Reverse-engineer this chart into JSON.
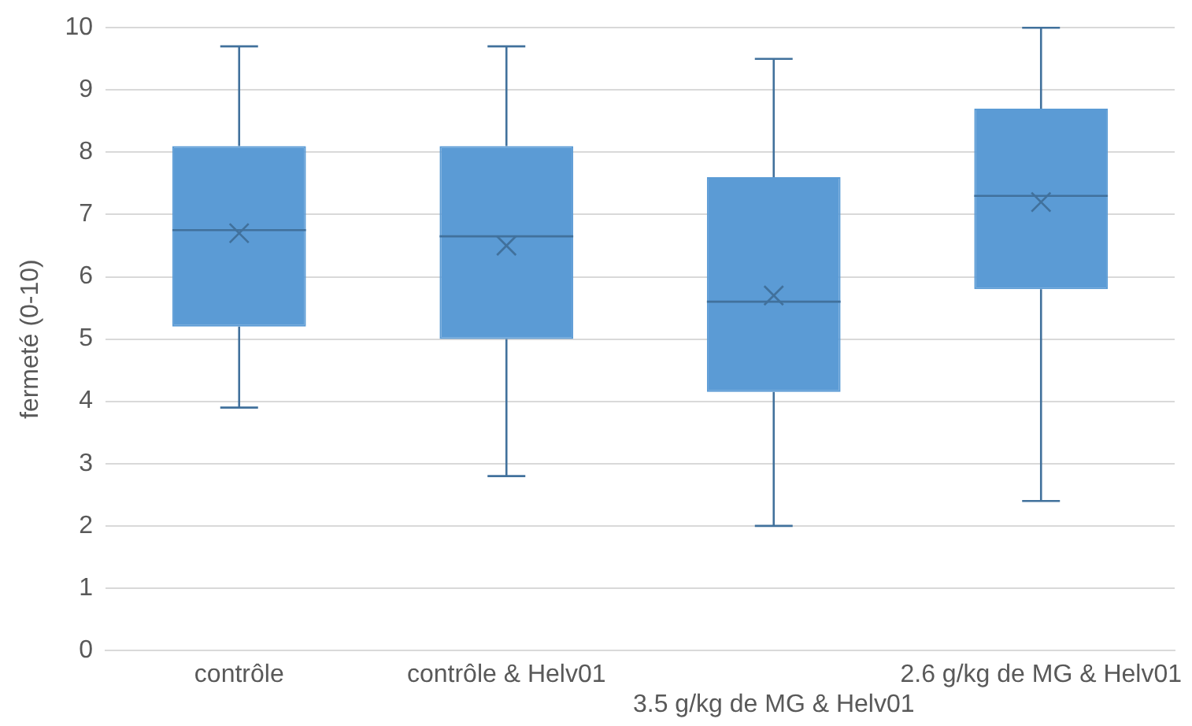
{
  "chart_data": {
    "type": "box",
    "ylabel": "fermeté (0-10)",
    "categories": [
      "contrôle",
      "contrôle & Helv01",
      "3.5 g/kg de MG & Helv01",
      "2.6 g/kg de MG & Helv01"
    ],
    "color": "#5b9bd5",
    "boxes": [
      {
        "low": 3.9,
        "q1": 5.2,
        "median": 6.75,
        "q3": 8.1,
        "high": 9.7,
        "mean": 6.7
      },
      {
        "low": 2.8,
        "q1": 5.0,
        "median": 6.65,
        "q3": 8.1,
        "high": 9.7,
        "mean": 6.5
      },
      {
        "low": 2.0,
        "q1": 4.15,
        "median": 5.6,
        "q3": 7.6,
        "high": 9.5,
        "mean": 5.7
      },
      {
        "low": 2.4,
        "q1": 5.8,
        "median": 7.3,
        "q3": 8.7,
        "high": 10,
        "mean": 7.2
      }
    ],
    "ylim": [
      0,
      10
    ],
    "yticks": [
      0,
      1,
      2,
      3,
      4,
      5,
      6,
      7,
      8,
      9,
      10
    ],
    "grid": "y",
    "legend": false
  }
}
